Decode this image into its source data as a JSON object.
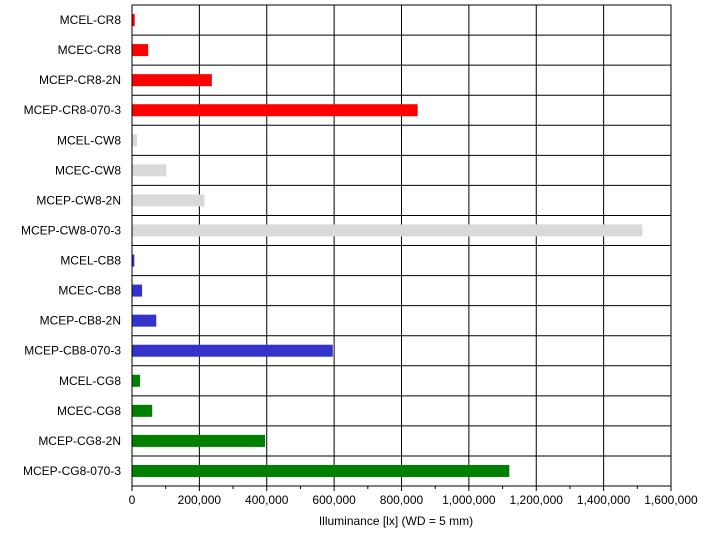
{
  "chart_data": {
    "type": "bar",
    "orientation": "horizontal",
    "xlabel": "Illuminance [lx] (WD = 5 mm)",
    "ylabel": "",
    "xlim": [
      0,
      1600000
    ],
    "x_ticks": [
      0,
      200000,
      400000,
      600000,
      800000,
      1000000,
      1200000,
      1400000,
      1600000
    ],
    "x_tick_labels": [
      "0",
      "200,000",
      "400,000",
      "600,000",
      "800,000",
      "1,000,000",
      "1,200,000",
      "1,400,000",
      "1,600,000"
    ],
    "grid": true,
    "categories": [
      "MCEL-CR8",
      "MCEC-CR8",
      "MCEP-CR8-2N",
      "MCEP-CR8-070-3",
      "MCEL-CW8",
      "MCEC-CW8",
      "MCEP-CW8-2N",
      "MCEP-CW8-070-3",
      "MCEL-CB8",
      "MCEC-CB8",
      "MCEP-CB8-2N",
      "MCEP-CB8-070-3",
      "MCEL-CG8",
      "MCEC-CG8",
      "MCEP-CG8-2N",
      "MCEP-CG8-070-3"
    ],
    "values": [
      8000,
      48000,
      237000,
      848000,
      15000,
      102000,
      215000,
      1515000,
      7000,
      30000,
      72000,
      596000,
      24000,
      60000,
      395000,
      1120000
    ],
    "colors": [
      "#ff0000",
      "#ff0000",
      "#ff0000",
      "#ff0000",
      "#d9d9d9",
      "#d9d9d9",
      "#d9d9d9",
      "#d9d9d9",
      "#3333cc",
      "#3333cc",
      "#3333cc",
      "#3333cc",
      "#008000",
      "#008000",
      "#008000",
      "#008000"
    ]
  }
}
